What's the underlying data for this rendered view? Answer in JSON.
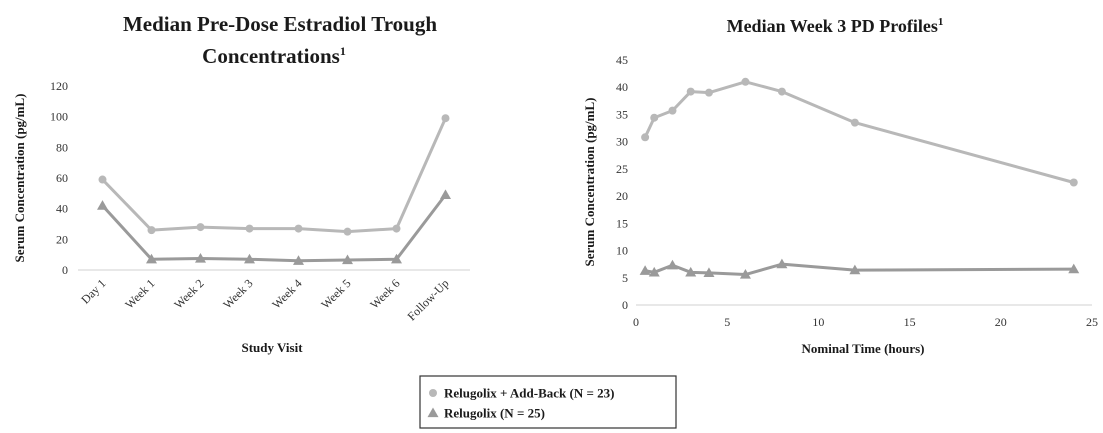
{
  "chart_data": [
    {
      "type": "line",
      "title_line1": "Median Pre-Dose Estradiol Trough",
      "title_line2": "Concentrations",
      "title_superscript": "1",
      "xlabel": "Study Visit",
      "ylabel": "Serum Concentration (pg/mL)",
      "categories": [
        "Day 1",
        "Week 1",
        "Week 2",
        "Week 3",
        "Week 4",
        "Week 5",
        "Week 6",
        "Follow-Up"
      ],
      "ylim": [
        0,
        120
      ],
      "yticks": [
        0,
        20,
        40,
        60,
        80,
        100,
        120
      ],
      "grid": false,
      "series": [
        {
          "name": "Relugolix + Add-Back (N = 23)",
          "marker": "circle",
          "color": "#b8b8b8",
          "values": [
            59,
            26,
            28,
            27,
            27,
            25,
            27,
            99
          ]
        },
        {
          "name": "Relugolix (N = 25)",
          "marker": "triangle",
          "color": "#9a9a9a",
          "values": [
            42,
            7,
            7.5,
            7,
            6,
            6.5,
            7,
            49
          ]
        }
      ]
    },
    {
      "type": "line",
      "title": "Median Week 3 PD Profiles",
      "title_superscript": "1",
      "xlabel": "Nominal Time (hours)",
      "ylabel": "Serum Concentration (pg/mL)",
      "xlim": [
        0,
        25
      ],
      "xticks": [
        0,
        5,
        10,
        15,
        20,
        25
      ],
      "ylim": [
        0,
        45
      ],
      "yticks": [
        0,
        5,
        10,
        15,
        20,
        25,
        30,
        35,
        40,
        45
      ],
      "grid": false,
      "series": [
        {
          "name": "Relugolix + Add-Back (N = 23)",
          "marker": "circle",
          "color": "#b8b8b8",
          "x": [
            0.5,
            1,
            2,
            3,
            4,
            6,
            8,
            12,
            24
          ],
          "y": [
            30.8,
            34.4,
            35.7,
            39.2,
            39,
            41,
            39.2,
            33.5,
            22.5
          ]
        },
        {
          "name": "Relugolix (N = 25)",
          "marker": "triangle",
          "color": "#9a9a9a",
          "x": [
            0.5,
            1,
            2,
            3,
            4,
            6,
            8,
            12,
            24
          ],
          "y": [
            6.3,
            6,
            7.3,
            6,
            5.9,
            5.6,
            7.5,
            6.4,
            6.6
          ]
        }
      ]
    }
  ],
  "legend": {
    "placement": "bottom-center",
    "items": [
      {
        "label": "Relugolix + Add-Back (N = 23)",
        "marker": "circle",
        "color": "#b8b8b8"
      },
      {
        "label": "Relugolix (N = 25)",
        "marker": "triangle",
        "color": "#9a9a9a"
      }
    ]
  }
}
